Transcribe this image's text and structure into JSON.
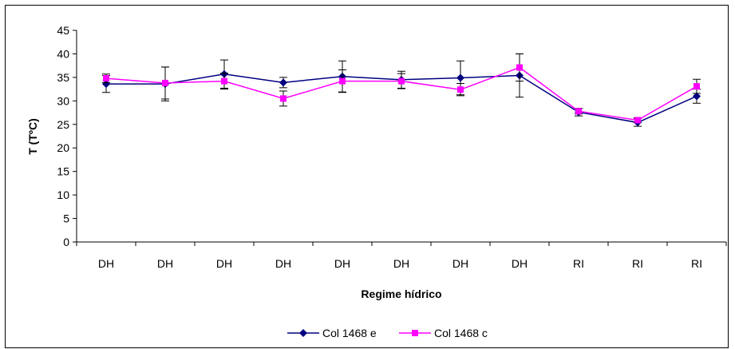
{
  "chart_data": {
    "type": "line",
    "xlabel": "Regime hídrico",
    "ylabel": "T (TºC)",
    "ylim": [
      0,
      45
    ],
    "yticks": [
      0,
      5,
      10,
      15,
      20,
      25,
      30,
      35,
      40,
      45
    ],
    "categories": [
      "DH",
      "DH",
      "DH",
      "DH",
      "DH",
      "DH",
      "DH",
      "DH",
      "RI",
      "RI",
      "RI"
    ],
    "grid": false,
    "legend_position": "bottom",
    "series": [
      {
        "name": "Col 1468 e",
        "color": "#000080",
        "marker": "diamond",
        "values": [
          33.6,
          33.6,
          35.7,
          33.9,
          35.2,
          34.5,
          34.9,
          35.4,
          27.6,
          25.4,
          31.0
        ],
        "error": [
          1.8,
          3.6,
          3.0,
          1.1,
          3.3,
          1.8,
          3.6,
          4.6,
          0.8,
          0.8,
          1.5
        ]
      },
      {
        "name": "Col 1468 c",
        "color": "#FF00FF",
        "marker": "square",
        "values": [
          34.8,
          33.8,
          34.2,
          30.5,
          34.2,
          34.2,
          32.4,
          37.1,
          27.8,
          25.9,
          33.1
        ],
        "error": [
          0.9,
          3.4,
          1.7,
          1.6,
          2.4,
          1.6,
          1.3,
          2.9,
          0.6,
          0.5,
          1.5
        ]
      }
    ]
  }
}
